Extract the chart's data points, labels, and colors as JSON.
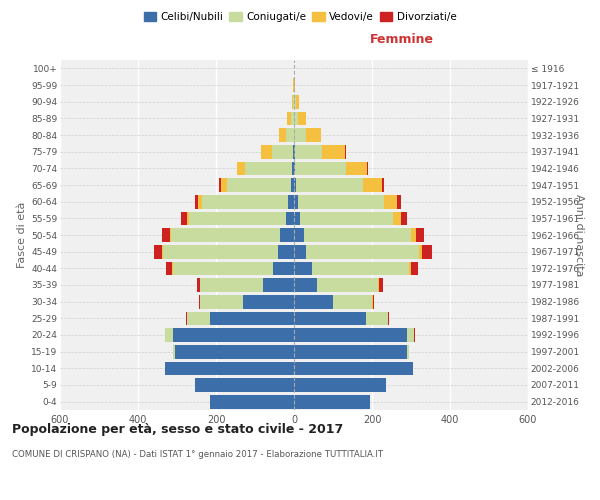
{
  "age_groups": [
    "0-4",
    "5-9",
    "10-14",
    "15-19",
    "20-24",
    "25-29",
    "30-34",
    "35-39",
    "40-44",
    "45-49",
    "50-54",
    "55-59",
    "60-64",
    "65-69",
    "70-74",
    "75-79",
    "80-84",
    "85-89",
    "90-94",
    "95-99",
    "100+"
  ],
  "birth_years": [
    "2012-2016",
    "2007-2011",
    "2002-2006",
    "1997-2001",
    "1992-1996",
    "1987-1991",
    "1982-1986",
    "1977-1981",
    "1972-1976",
    "1967-1971",
    "1962-1966",
    "1957-1961",
    "1952-1956",
    "1947-1951",
    "1942-1946",
    "1937-1941",
    "1932-1936",
    "1927-1931",
    "1922-1926",
    "1917-1921",
    "≤ 1916"
  ],
  "males": {
    "celibi": [
      215,
      255,
      330,
      305,
      310,
      215,
      130,
      80,
      55,
      40,
      35,
      20,
      15,
      8,
      5,
      2,
      0,
      0,
      0,
      0,
      0
    ],
    "coniugati": [
      0,
      0,
      0,
      5,
      20,
      60,
      110,
      160,
      255,
      295,
      280,
      250,
      220,
      165,
      120,
      55,
      20,
      8,
      3,
      1,
      0
    ],
    "vedovi": [
      0,
      0,
      0,
      0,
      0,
      0,
      0,
      1,
      2,
      3,
      3,
      5,
      10,
      15,
      20,
      28,
      18,
      10,
      3,
      1,
      0
    ],
    "divorziati": [
      0,
      0,
      0,
      0,
      0,
      1,
      3,
      8,
      15,
      20,
      20,
      15,
      8,
      5,
      1,
      0,
      0,
      0,
      0,
      0,
      0
    ]
  },
  "females": {
    "nubili": [
      195,
      235,
      305,
      290,
      290,
      185,
      100,
      60,
      45,
      30,
      25,
      15,
      10,
      6,
      3,
      2,
      0,
      0,
      0,
      0,
      0
    ],
    "coniugate": [
      0,
      0,
      0,
      5,
      18,
      55,
      100,
      155,
      250,
      290,
      275,
      240,
      220,
      170,
      130,
      70,
      30,
      10,
      4,
      1,
      0
    ],
    "vedove": [
      0,
      0,
      0,
      0,
      0,
      1,
      2,
      3,
      5,
      8,
      12,
      20,
      35,
      50,
      55,
      60,
      40,
      20,
      8,
      2,
      1
    ],
    "divorziate": [
      0,
      0,
      0,
      0,
      1,
      2,
      4,
      10,
      18,
      25,
      22,
      15,
      10,
      5,
      2,
      1,
      0,
      0,
      0,
      0,
      0
    ]
  },
  "colors": {
    "celibi": "#3c6eaa",
    "coniugati": "#c8dca0",
    "vedovi": "#f5c040",
    "divorziati": "#cc2222"
  },
  "legend_labels": [
    "Celibi/Nubili",
    "Coniugati/e",
    "Vedovi/e",
    "Divorziati/e"
  ],
  "legend_colors": [
    "#3c6eaa",
    "#c8dca0",
    "#f5c040",
    "#cc2222"
  ],
  "title": "Popolazione per età, sesso e stato civile - 2017",
  "subtitle": "COMUNE DI CRISPANO (NA) - Dati ISTAT 1° gennaio 2017 - Elaborazione TUTTITALIA.IT",
  "xlabel_right": "Femmine",
  "ylabel_left": "Fasce di età",
  "ylabel_right": "Anni di nascita",
  "xlim": 600,
  "bg_color": "#ffffff",
  "plot_bg_color": "#f0f0f0"
}
